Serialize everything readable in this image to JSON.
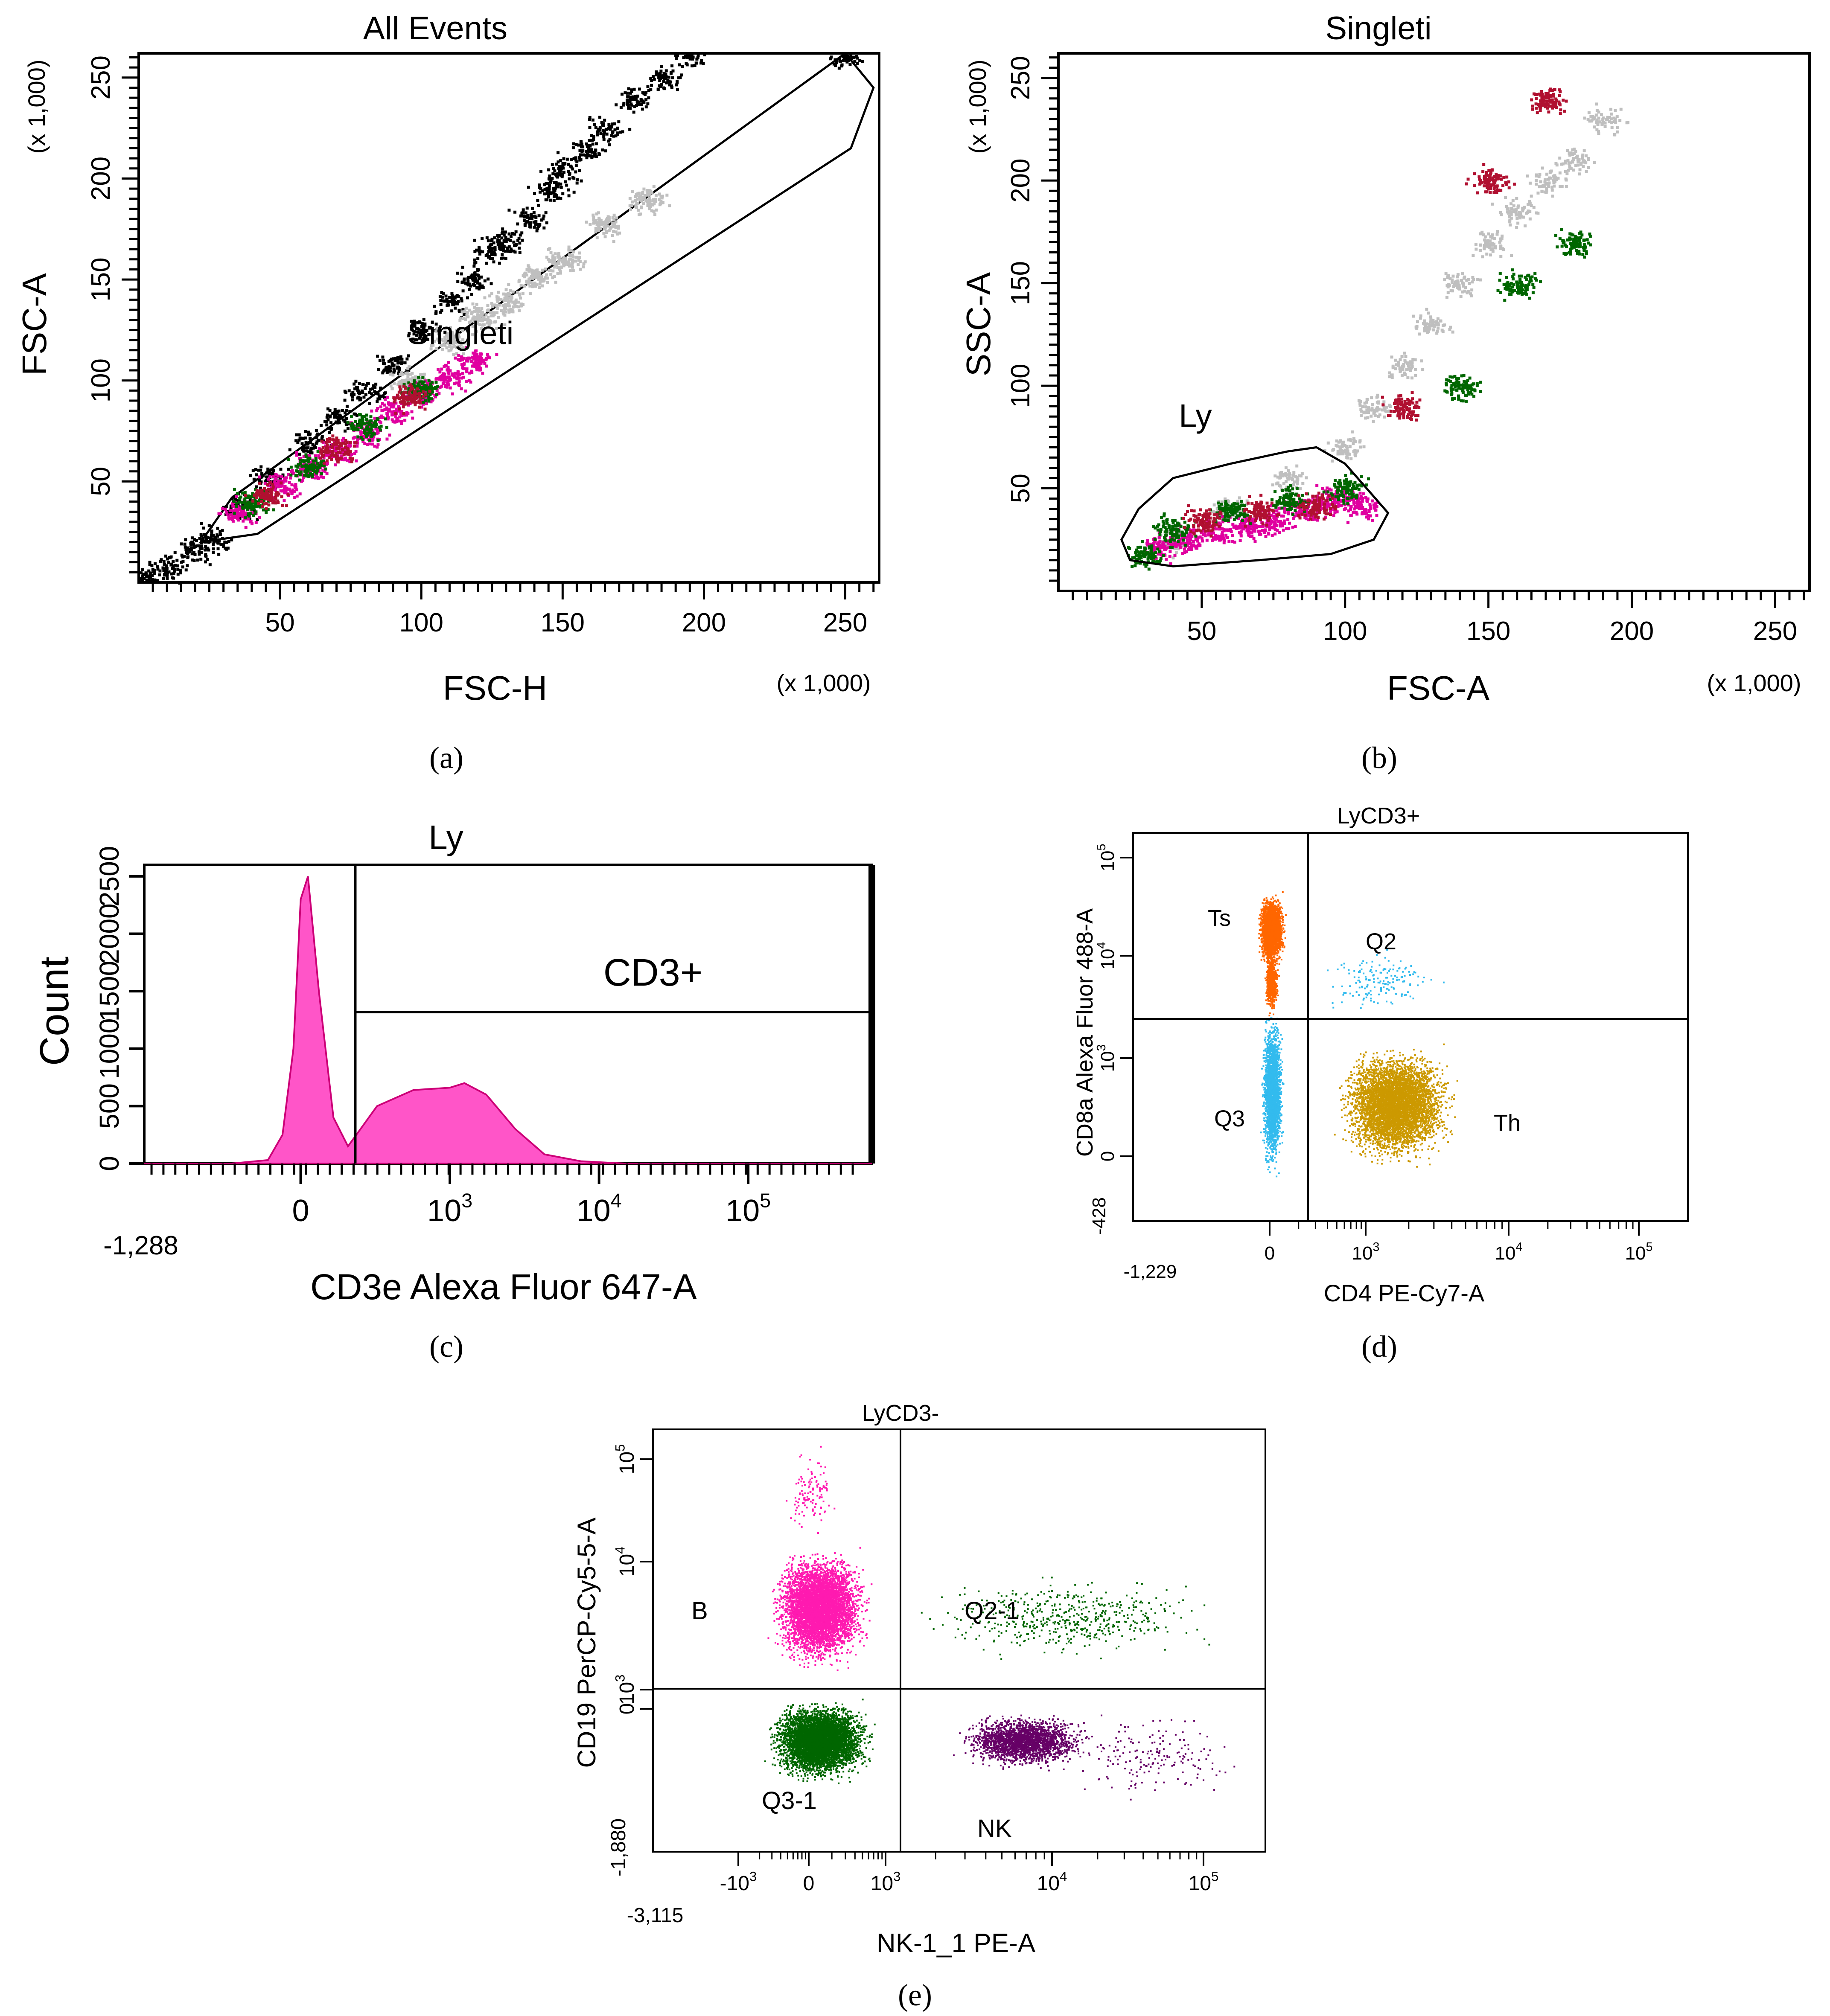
{
  "chart_data": [
    {
      "id": "a",
      "type": "scatter",
      "caption_letter": "a",
      "title": "All Events",
      "xlabel": "FSC-H",
      "ylabel": "FSC-A",
      "x_multiplier": "(x 1,000)",
      "y_multiplier": "(x 1,000)",
      "xlim": [
        0,
        262
      ],
      "ylim": [
        0,
        262
      ],
      "x_ticks": [
        50,
        100,
        150,
        200,
        250
      ],
      "y_ticks": [
        50,
        100,
        150,
        200,
        250
      ],
      "gate": {
        "name": "Singleti",
        "label_at": [
          95,
          118
        ],
        "points": [
          [
            22,
            20
          ],
          [
            33,
            42
          ],
          [
            40,
            49
          ],
          [
            250,
            262
          ],
          [
            260,
            245
          ],
          [
            252,
            215
          ],
          [
            42,
            24
          ],
          [
            32,
            22
          ]
        ]
      },
      "series": [
        {
          "color": "#000000",
          "points": [
            [
              2,
              3
            ],
            [
              10,
              8
            ],
            [
              20,
              16
            ],
            [
              26,
              22
            ],
            [
              35,
              38
            ],
            [
              45,
              52
            ],
            [
              60,
              70
            ],
            [
              70,
              82
            ],
            [
              80,
              95
            ],
            [
              90,
              108
            ],
            [
              100,
              125
            ],
            [
              110,
              140
            ],
            [
              118,
              150
            ],
            [
              125,
              165
            ],
            [
              130,
              170
            ],
            [
              138,
              180
            ],
            [
              145,
              195
            ],
            [
              150,
              205
            ],
            [
              158,
              215
            ],
            [
              165,
              225
            ],
            [
              175,
              240
            ],
            [
              185,
              250
            ],
            [
              195,
              262
            ],
            [
              250,
              262
            ]
          ]
        },
        {
          "color": "#bfbfbf",
          "points": [
            [
              95,
              100
            ],
            [
              110,
              120
            ],
            [
              120,
              132
            ],
            [
              130,
              140
            ],
            [
              140,
              152
            ],
            [
              150,
              160
            ],
            [
              165,
              178
            ],
            [
              180,
              190
            ]
          ]
        },
        {
          "color": "#e000a0",
          "points": [
            [
              35,
              35
            ],
            [
              50,
              48
            ],
            [
              60,
              58
            ],
            [
              70,
              65
            ],
            [
              80,
              75
            ],
            [
              90,
              85
            ],
            [
              100,
              95
            ],
            [
              110,
              102
            ],
            [
              118,
              110
            ]
          ]
        },
        {
          "color": "#006600",
          "points": [
            [
              40,
              40
            ],
            [
              60,
              58
            ],
            [
              80,
              78
            ],
            [
              100,
              96
            ]
          ]
        },
        {
          "color": "#b01030",
          "points": [
            [
              45,
              44
            ],
            [
              70,
              67
            ],
            [
              95,
              92
            ]
          ]
        }
      ]
    },
    {
      "id": "b",
      "type": "scatter",
      "caption_letter": "b",
      "title": "Singleti",
      "xlabel": "FSC-A",
      "ylabel": "SSC-A",
      "x_multiplier": "(x 1,000)",
      "y_multiplier": "(x 1,000)",
      "xlim": [
        0,
        262
      ],
      "ylim": [
        0,
        262
      ],
      "x_ticks": [
        50,
        100,
        150,
        200,
        250
      ],
      "y_ticks": [
        50,
        100,
        150,
        200,
        250
      ],
      "gate": {
        "name": "Ly",
        "label_at": [
          42,
          80
        ],
        "points": [
          [
            25,
            15
          ],
          [
            22,
            25
          ],
          [
            28,
            40
          ],
          [
            40,
            55
          ],
          [
            60,
            62
          ],
          [
            80,
            68
          ],
          [
            90,
            70
          ],
          [
            100,
            62
          ],
          [
            115,
            38
          ],
          [
            110,
            25
          ],
          [
            95,
            18
          ],
          [
            70,
            15
          ],
          [
            40,
            12
          ]
        ]
      },
      "series": [
        {
          "color": "#bfbfbf",
          "points": [
            [
              40,
              25
            ],
            [
              60,
              40
            ],
            [
              80,
              55
            ],
            [
              100,
              70
            ],
            [
              110,
              90
            ],
            [
              120,
              110
            ],
            [
              130,
              130
            ],
            [
              140,
              150
            ],
            [
              150,
              170
            ],
            [
              160,
              185
            ],
            [
              170,
              200
            ],
            [
              180,
              210
            ],
            [
              190,
              230
            ]
          ]
        },
        {
          "color": "#e000a0",
          "points": [
            [
              35,
              22
            ],
            [
              45,
              25
            ],
            [
              55,
              30
            ],
            [
              65,
              32
            ],
            [
              75,
              35
            ],
            [
              85,
              40
            ],
            [
              95,
              45
            ],
            [
              105,
              42
            ]
          ]
        },
        {
          "color": "#006600",
          "points": [
            [
              30,
              18
            ],
            [
              40,
              30
            ],
            [
              60,
              40
            ],
            [
              80,
              45
            ],
            [
              100,
              50
            ],
            [
              140,
              100
            ],
            [
              160,
              150
            ],
            [
              180,
              170
            ]
          ]
        },
        {
          "color": "#b01030",
          "points": [
            [
              50,
              35
            ],
            [
              70,
              40
            ],
            [
              90,
              42
            ],
            [
              120,
              90
            ],
            [
              150,
              200
            ],
            [
              170,
              240
            ]
          ]
        }
      ]
    },
    {
      "id": "c",
      "type": "area",
      "caption_letter": "c",
      "title": "Ly",
      "xlabel": "CD3e Alexa Fluor 647-A",
      "ylabel": "Count",
      "x_axis_min_label": "-1,288",
      "x_tick_labels": [
        "0",
        "10^3",
        "10^4",
        "10^5"
      ],
      "y_tick_labels": [
        "0",
        "500",
        "1000",
        "1500",
        "2000",
        "2500"
      ],
      "xlim": [
        0,
        1
      ],
      "ylim": [
        0,
        2600
      ],
      "gate": {
        "name": "CD3+",
        "x_split": 0.29
      },
      "histogram": {
        "color": "#ff55c8",
        "x": [
          0.0,
          0.12,
          0.17,
          0.19,
          0.205,
          0.215,
          0.225,
          0.24,
          0.26,
          0.28,
          0.32,
          0.37,
          0.42,
          0.44,
          0.47,
          0.51,
          0.55,
          0.6,
          0.66,
          1.0
        ],
        "counts": [
          0,
          0,
          30,
          250,
          1000,
          2300,
          2500,
          1500,
          400,
          150,
          500,
          640,
          660,
          700,
          600,
          300,
          80,
          20,
          0,
          0
        ]
      }
    },
    {
      "id": "d",
      "type": "scatter",
      "caption_letter": "d",
      "title": "LyCD3+",
      "xlabel": "CD4 PE-Cy7-A",
      "ylabel": "CD8a Alexa Fluor 488-A",
      "x_axis_min_label": "-1,229",
      "y_axis_min_label": "-428",
      "x_tick_labels": [
        "0",
        "10^3",
        "10^4",
        "10^5"
      ],
      "y_tick_labels": [
        "0",
        "10^3",
        "10^4",
        "10^5"
      ],
      "quadrants": [
        "Ts",
        "Q2",
        "Q3",
        "Th"
      ],
      "populations": [
        {
          "name": "Ts",
          "color": "#ff6600"
        },
        {
          "name": "Q2",
          "color": "#33bbee"
        },
        {
          "name": "Q3",
          "color": "#33bbee"
        },
        {
          "name": "Th",
          "color": "#cc9900"
        }
      ]
    },
    {
      "id": "e",
      "type": "scatter",
      "caption_letter": "e",
      "title": "LyCD3-",
      "xlabel": "NK-1_1 PE-A",
      "ylabel": "CD19 PerCP-Cy5-5-A",
      "x_axis_min_label": "-3,115",
      "y_axis_min_label": "-1,880",
      "x_tick_labels": [
        "-10^3",
        "0",
        "10^3",
        "10^4",
        "10^5"
      ],
      "y_tick_labels": [
        "0",
        "10^3",
        "10^4",
        "10^5"
      ],
      "quadrants": [
        "B",
        "Q2-1",
        "Q3-1",
        "NK"
      ],
      "populations": [
        {
          "name": "B",
          "color": "#ff1ab0"
        },
        {
          "name": "Q2-1",
          "color": "#006600"
        },
        {
          "name": "Q3-1",
          "color": "#006600"
        },
        {
          "name": "NK",
          "color": "#660066"
        }
      ]
    }
  ],
  "captions": [
    "(a)",
    "(b)",
    "(c)",
    "(d)",
    "(e)"
  ]
}
